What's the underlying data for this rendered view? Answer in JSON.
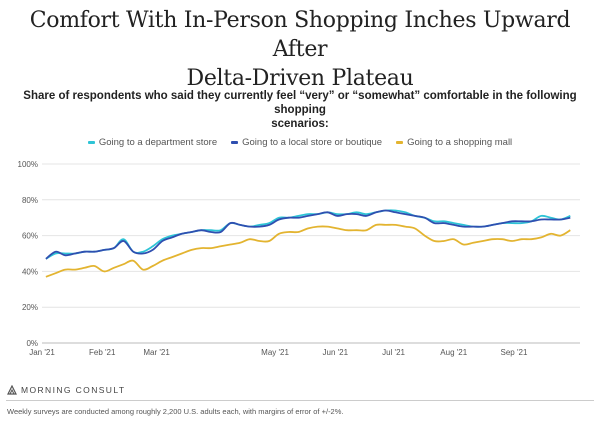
{
  "title_line1": "Comfort With In-Person Shopping Inches Upward After",
  "title_line2": "Delta-Driven Plateau",
  "subtitle_line1": "Share of respondents who said they currently feel “very” or “somewhat” comfortable in the following shopping",
  "subtitle_line2": "scenarios:",
  "brand": "MORNING CONSULT",
  "footnote": "Weekly surveys are conducted among roughly 2,200 U.S. adults each, with margins of error of +/-2%.",
  "chart_data": {
    "type": "line",
    "title": "Comfort With In-Person Shopping Inches Upward After Delta-Driven Plateau",
    "subtitle": "Share of respondents who said they currently feel “very” or “somewhat” comfortable in the following shopping scenarios:",
    "xlabel": "",
    "ylabel": "",
    "ylim": [
      0,
      100
    ],
    "y_ticks": [
      "0%",
      "20%",
      "40%",
      "60%",
      "80%",
      "100%"
    ],
    "x_ticks": [
      "Jan '21",
      "Feb '21",
      "Mar '21",
      "May '21",
      "Jun '21",
      "Jul '21",
      "Aug '21",
      "Sep '21"
    ],
    "grid": "horizontal",
    "legend": "top-center",
    "series": [
      {
        "name": "Going to a department store",
        "color": "#2ec4d6",
        "values": [
          [
            "2021-01-03",
            47
          ],
          [
            "2021-01-08",
            50
          ],
          [
            "2021-01-13",
            50
          ],
          [
            "2021-01-18",
            50
          ],
          [
            "2021-01-23",
            51
          ],
          [
            "2021-01-28",
            51
          ],
          [
            "2021-02-02",
            52
          ],
          [
            "2021-02-07",
            53
          ],
          [
            "2021-02-12",
            58
          ],
          [
            "2021-02-17",
            51
          ],
          [
            "2021-02-22",
            51
          ],
          [
            "2021-02-27",
            54
          ],
          [
            "2021-03-04",
            58
          ],
          [
            "2021-03-09",
            60
          ],
          [
            "2021-03-14",
            61
          ],
          [
            "2021-03-19",
            62
          ],
          [
            "2021-03-24",
            63
          ],
          [
            "2021-03-29",
            63
          ],
          [
            "2021-04-03",
            63
          ],
          [
            "2021-04-08",
            67
          ],
          [
            "2021-04-13",
            66
          ],
          [
            "2021-04-18",
            65
          ],
          [
            "2021-04-23",
            66
          ],
          [
            "2021-04-28",
            67
          ],
          [
            "2021-05-03",
            70
          ],
          [
            "2021-05-08",
            70
          ],
          [
            "2021-05-13",
            71
          ],
          [
            "2021-05-18",
            72
          ],
          [
            "2021-05-23",
            72
          ],
          [
            "2021-05-28",
            73
          ],
          [
            "2021-06-02",
            72
          ],
          [
            "2021-06-07",
            72
          ],
          [
            "2021-06-12",
            73
          ],
          [
            "2021-06-17",
            72
          ],
          [
            "2021-06-22",
            73
          ],
          [
            "2021-06-27",
            74
          ],
          [
            "2021-07-02",
            74
          ],
          [
            "2021-07-07",
            73
          ],
          [
            "2021-07-12",
            71
          ],
          [
            "2021-07-17",
            70
          ],
          [
            "2021-07-22",
            68
          ],
          [
            "2021-07-27",
            68
          ],
          [
            "2021-08-01",
            67
          ],
          [
            "2021-08-06",
            66
          ],
          [
            "2021-08-11",
            65
          ],
          [
            "2021-08-16",
            65
          ],
          [
            "2021-08-21",
            66
          ],
          [
            "2021-08-26",
            67
          ],
          [
            "2021-08-31",
            67
          ],
          [
            "2021-09-05",
            67
          ],
          [
            "2021-09-10",
            68
          ],
          [
            "2021-09-15",
            71
          ],
          [
            "2021-09-20",
            70
          ],
          [
            "2021-09-25",
            69
          ],
          [
            "2021-09-30",
            71
          ]
        ]
      },
      {
        "name": "Going to a local store or boutique",
        "color": "#2f4fb0",
        "values": [
          [
            "2021-01-03",
            47
          ],
          [
            "2021-01-08",
            51
          ],
          [
            "2021-01-13",
            49
          ],
          [
            "2021-01-18",
            50
          ],
          [
            "2021-01-23",
            51
          ],
          [
            "2021-01-28",
            51
          ],
          [
            "2021-02-02",
            52
          ],
          [
            "2021-02-07",
            53
          ],
          [
            "2021-02-12",
            57
          ],
          [
            "2021-02-17",
            51
          ],
          [
            "2021-02-22",
            50
          ],
          [
            "2021-02-27",
            52
          ],
          [
            "2021-03-04",
            57
          ],
          [
            "2021-03-09",
            59
          ],
          [
            "2021-03-14",
            61
          ],
          [
            "2021-03-19",
            62
          ],
          [
            "2021-03-24",
            63
          ],
          [
            "2021-03-29",
            62
          ],
          [
            "2021-04-03",
            62
          ],
          [
            "2021-04-08",
            67
          ],
          [
            "2021-04-13",
            66
          ],
          [
            "2021-04-18",
            65
          ],
          [
            "2021-04-23",
            65
          ],
          [
            "2021-04-28",
            66
          ],
          [
            "2021-05-03",
            69
          ],
          [
            "2021-05-08",
            70
          ],
          [
            "2021-05-13",
            70
          ],
          [
            "2021-05-18",
            71
          ],
          [
            "2021-05-23",
            72
          ],
          [
            "2021-05-28",
            73
          ],
          [
            "2021-06-02",
            71
          ],
          [
            "2021-06-07",
            72
          ],
          [
            "2021-06-12",
            72
          ],
          [
            "2021-06-17",
            71
          ],
          [
            "2021-06-22",
            73
          ],
          [
            "2021-06-27",
            74
          ],
          [
            "2021-07-02",
            73
          ],
          [
            "2021-07-07",
            72
          ],
          [
            "2021-07-12",
            71
          ],
          [
            "2021-07-17",
            70
          ],
          [
            "2021-07-22",
            67
          ],
          [
            "2021-07-27",
            67
          ],
          [
            "2021-08-01",
            66
          ],
          [
            "2021-08-06",
            65
          ],
          [
            "2021-08-11",
            65
          ],
          [
            "2021-08-16",
            65
          ],
          [
            "2021-08-21",
            66
          ],
          [
            "2021-08-26",
            67
          ],
          [
            "2021-08-31",
            68
          ],
          [
            "2021-09-05",
            68
          ],
          [
            "2021-09-10",
            68
          ],
          [
            "2021-09-15",
            69
          ],
          [
            "2021-09-20",
            69
          ],
          [
            "2021-09-25",
            69
          ],
          [
            "2021-09-30",
            70
          ]
        ]
      },
      {
        "name": "Going to a shopping mall",
        "color": "#e3b430",
        "values": [
          [
            "2021-01-03",
            37
          ],
          [
            "2021-01-08",
            39
          ],
          [
            "2021-01-13",
            41
          ],
          [
            "2021-01-18",
            41
          ],
          [
            "2021-01-23",
            42
          ],
          [
            "2021-01-28",
            43
          ],
          [
            "2021-02-02",
            40
          ],
          [
            "2021-02-07",
            42
          ],
          [
            "2021-02-12",
            44
          ],
          [
            "2021-02-17",
            46
          ],
          [
            "2021-02-22",
            41
          ],
          [
            "2021-02-27",
            43
          ],
          [
            "2021-03-04",
            46
          ],
          [
            "2021-03-09",
            48
          ],
          [
            "2021-03-14",
            50
          ],
          [
            "2021-03-19",
            52
          ],
          [
            "2021-03-24",
            53
          ],
          [
            "2021-03-29",
            53
          ],
          [
            "2021-04-03",
            54
          ],
          [
            "2021-04-08",
            55
          ],
          [
            "2021-04-13",
            56
          ],
          [
            "2021-04-18",
            58
          ],
          [
            "2021-04-23",
            57
          ],
          [
            "2021-04-28",
            57
          ],
          [
            "2021-05-03",
            61
          ],
          [
            "2021-05-08",
            62
          ],
          [
            "2021-05-13",
            62
          ],
          [
            "2021-05-18",
            64
          ],
          [
            "2021-05-23",
            65
          ],
          [
            "2021-05-28",
            65
          ],
          [
            "2021-06-02",
            64
          ],
          [
            "2021-06-07",
            63
          ],
          [
            "2021-06-12",
            63
          ],
          [
            "2021-06-17",
            63
          ],
          [
            "2021-06-22",
            66
          ],
          [
            "2021-06-27",
            66
          ],
          [
            "2021-07-02",
            66
          ],
          [
            "2021-07-07",
            65
          ],
          [
            "2021-07-12",
            64
          ],
          [
            "2021-07-17",
            60
          ],
          [
            "2021-07-22",
            57
          ],
          [
            "2021-07-27",
            57
          ],
          [
            "2021-08-01",
            58
          ],
          [
            "2021-08-06",
            55
          ],
          [
            "2021-08-11",
            56
          ],
          [
            "2021-08-16",
            57
          ],
          [
            "2021-08-21",
            58
          ],
          [
            "2021-08-26",
            58
          ],
          [
            "2021-08-31",
            57
          ],
          [
            "2021-09-05",
            58
          ],
          [
            "2021-09-10",
            58
          ],
          [
            "2021-09-15",
            59
          ],
          [
            "2021-09-20",
            61
          ],
          [
            "2021-09-25",
            60
          ],
          [
            "2021-09-30",
            63
          ]
        ]
      }
    ]
  }
}
